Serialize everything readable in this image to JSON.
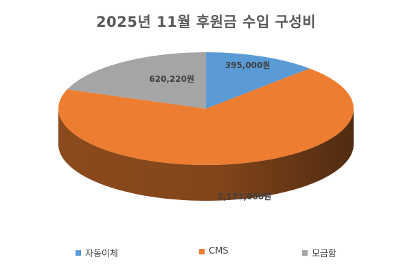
{
  "chart_data": {
    "type": "pie",
    "title": "2025년 11월 후원금 수입 구성비",
    "categories": [
      "자동이체",
      "CMS",
      "모금함"
    ],
    "values": [
      395000,
      2173000,
      620220
    ],
    "data_labels": [
      "395,000원",
      "2,173,000원",
      "620,220원"
    ],
    "colors": [
      "#5b9bd5",
      "#ed7d31",
      "#a5a5a5"
    ],
    "legend_position": "bottom",
    "style": "3d"
  }
}
